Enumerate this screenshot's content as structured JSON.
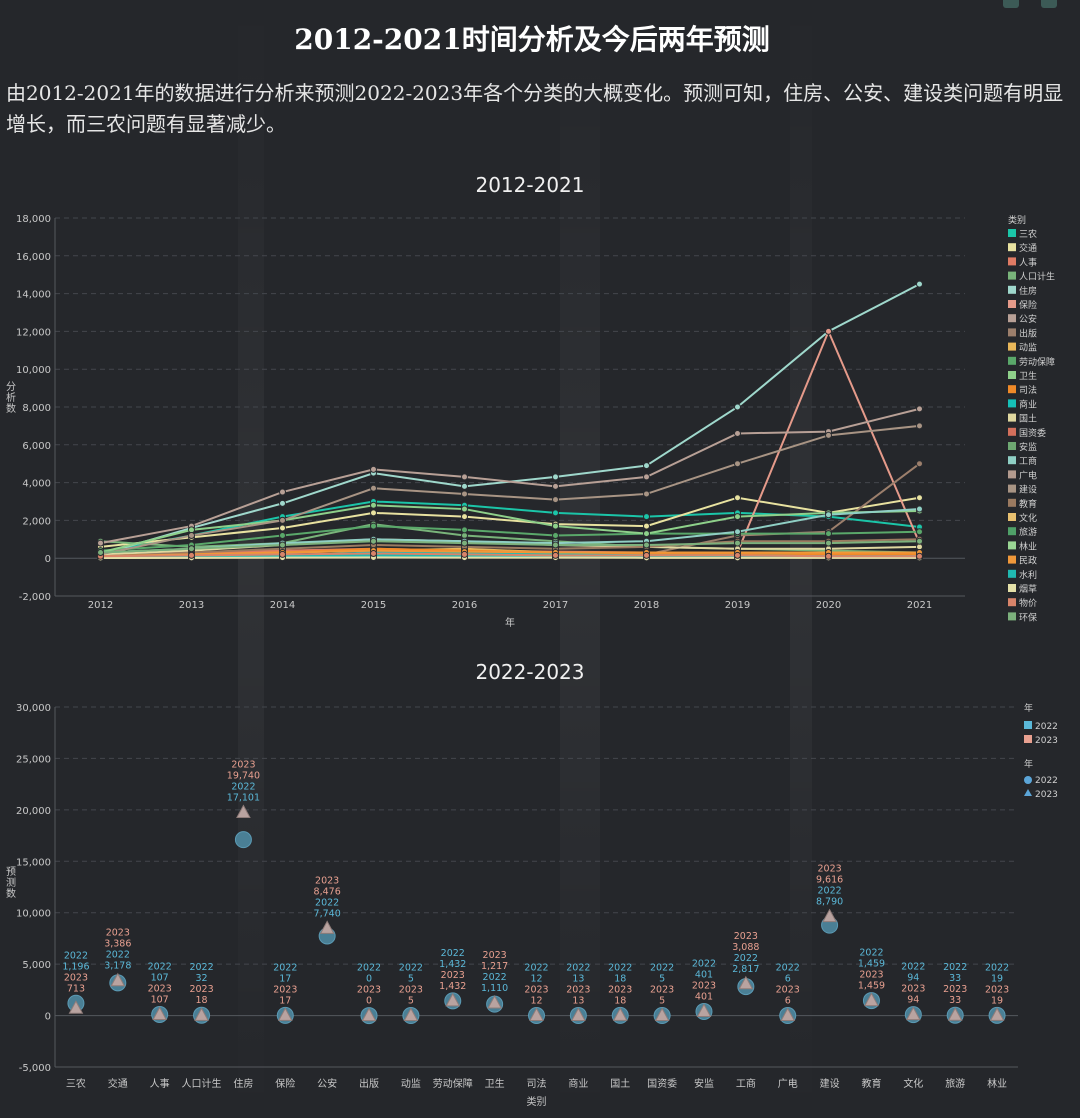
{
  "page": {
    "title": "2012-2021时间分析及今后两年预测",
    "intro": "由2012-2021年的数据进行分析来预测2022-2023年各个分类的大概变化。预测可知，住房、公安、建设类问题有明显增长，而三农问题有显著减少。"
  },
  "chart_data": [
    {
      "type": "line",
      "title": "2012-2021",
      "xlabel": "年",
      "ylabel": "分析数",
      "ylim": [
        -2000,
        18000
      ],
      "yticks": [
        -2000,
        0,
        2000,
        4000,
        6000,
        8000,
        10000,
        12000,
        14000,
        16000,
        18000
      ],
      "ytick_labels": [
        "-2,000",
        "0",
        "2,000",
        "4,000",
        "6,000",
        "8,000",
        "10,000",
        "12,000",
        "14,000",
        "16,000",
        "18,000"
      ],
      "x": [
        "2012",
        "2013",
        "2014",
        "2015",
        "2016",
        "2017",
        "2018",
        "2019",
        "2020",
        "2021"
      ],
      "grid": true,
      "legend_title": "类别",
      "legend_position": "right",
      "series": [
        {
          "name": "三农",
          "color": "#1bc5a8",
          "values": [
            300,
            1200,
            2200,
            3000,
            2800,
            2400,
            2200,
            2400,
            2200,
            1650
          ]
        },
        {
          "name": "交通",
          "color": "#e8e2a0",
          "values": [
            600,
            1100,
            1600,
            2400,
            2200,
            1800,
            1700,
            3200,
            2400,
            3200
          ]
        },
        {
          "name": "人事",
          "color": "#e07b64",
          "values": [
            200,
            300,
            400,
            500,
            400,
            350,
            300,
            300,
            250,
            200
          ]
        },
        {
          "name": "人口计生",
          "color": "#79b47a",
          "values": [
            900,
            600,
            800,
            1800,
            1200,
            900,
            600,
            500,
            400,
            300
          ]
        },
        {
          "name": "住房",
          "color": "#9fd8cc",
          "values": [
            200,
            1600,
            2900,
            4500,
            3800,
            4300,
            4900,
            8000,
            12000,
            14500
          ]
        },
        {
          "name": "保险",
          "color": "#e59a8a",
          "values": [
            100,
            200,
            300,
            400,
            350,
            300,
            300,
            300,
            12000,
            800
          ]
        },
        {
          "name": "公安",
          "color": "#b8a096",
          "values": [
            800,
            1700,
            3500,
            4700,
            4300,
            3800,
            4300,
            6600,
            6700,
            7900
          ]
        },
        {
          "name": "出版",
          "color": "#9c7f6c",
          "values": [
            50,
            100,
            150,
            200,
            150,
            100,
            200,
            1200,
            1400,
            5000
          ]
        },
        {
          "name": "动监",
          "color": "#e8b75a",
          "values": [
            100,
            200,
            300,
            400,
            500,
            300,
            200,
            200,
            200,
            200
          ]
        },
        {
          "name": "劳动保障",
          "color": "#5aa86a",
          "values": [
            400,
            700,
            1200,
            1700,
            1500,
            1200,
            1300,
            1300,
            1300,
            1400
          ]
        },
        {
          "name": "卫生",
          "color": "#8ed08a",
          "values": [
            300,
            1500,
            2000,
            2800,
            2600,
            1700,
            1300,
            2200,
            2400,
            2500
          ]
        },
        {
          "name": "司法",
          "color": "#f08a28",
          "values": [
            100,
            200,
            300,
            500,
            400,
            300,
            250,
            200,
            200,
            200
          ]
        },
        {
          "name": "商业",
          "color": "#16c0b8",
          "values": [
            50,
            100,
            150,
            300,
            250,
            200,
            150,
            150,
            100,
            100
          ]
        },
        {
          "name": "国土",
          "color": "#e0d8a0",
          "values": [
            200,
            400,
            700,
            1000,
            900,
            700,
            600,
            500,
            500,
            600
          ]
        },
        {
          "name": "国资委",
          "color": "#d4705c",
          "values": [
            20,
            40,
            60,
            80,
            70,
            60,
            50,
            50,
            40,
            40
          ]
        },
        {
          "name": "安监",
          "color": "#6ea872",
          "values": [
            30,
            50,
            80,
            100,
            90,
            80,
            70,
            60,
            60,
            60
          ]
        },
        {
          "name": "工商",
          "color": "#8fcfc4",
          "values": [
            300,
            500,
            800,
            1000,
            900,
            800,
            900,
            1400,
            2300,
            2600
          ]
        },
        {
          "name": "广电",
          "color": "#b39a8e",
          "values": [
            20,
            30,
            40,
            60,
            50,
            40,
            40,
            40,
            30,
            30
          ]
        },
        {
          "name": "建设",
          "color": "#a89484",
          "values": [
            200,
            1200,
            2000,
            3700,
            3400,
            3100,
            3400,
            5000,
            6500,
            7000
          ]
        },
        {
          "name": "教育",
          "color": "#9b7a60",
          "values": [
            100,
            300,
            500,
            700,
            600,
            500,
            600,
            900,
            900,
            1000
          ]
        },
        {
          "name": "文化",
          "color": "#e8c070",
          "values": [
            50,
            80,
            100,
            150,
            130,
            100,
            100,
            100,
            90,
            90
          ]
        },
        {
          "name": "旅游",
          "color": "#4fa068",
          "values": [
            30,
            50,
            70,
            100,
            90,
            70,
            60,
            50,
            40,
            40
          ]
        },
        {
          "name": "林业",
          "color": "#9ad694",
          "values": [
            40,
            60,
            90,
            120,
            100,
            90,
            80,
            70,
            60,
            50
          ]
        },
        {
          "name": "民政",
          "color": "#f0983a",
          "values": [
            100,
            200,
            300,
            400,
            350,
            300,
            300,
            300,
            300,
            300
          ]
        },
        {
          "name": "水利",
          "color": "#20b8b0",
          "values": [
            50,
            80,
            120,
            150,
            130,
            110,
            100,
            100,
            90,
            80
          ]
        },
        {
          "name": "烟草",
          "color": "#e4e0a8",
          "values": [
            10,
            20,
            30,
            40,
            30,
            30,
            20,
            20,
            20,
            20
          ]
        },
        {
          "name": "物价",
          "color": "#d8846a",
          "values": [
            100,
            150,
            200,
            250,
            200,
            150,
            150,
            150,
            100,
            100
          ]
        },
        {
          "name": "环保",
          "color": "#7cb07c",
          "values": [
            300,
            500,
            700,
            900,
            800,
            700,
            700,
            800,
            800,
            900
          ]
        }
      ]
    },
    {
      "type": "scatter",
      "title": "2022-2023",
      "xlabel": "类别",
      "ylabel": "预测数",
      "ylim": [
        -5000,
        30000
      ],
      "yticks": [
        -5000,
        0,
        5000,
        10000,
        15000,
        20000,
        25000,
        30000
      ],
      "ytick_labels": [
        "-5,000",
        "0",
        "5,000",
        "10,000",
        "15,000",
        "20,000",
        "25,000",
        "30,000"
      ],
      "grid": true,
      "categories": [
        "三农",
        "交通",
        "人事",
        "人口计生",
        "住房",
        "保险",
        "公安",
        "出版",
        "动监",
        "劳动保障",
        "卫生",
        "司法",
        "商业",
        "国土",
        "国资委",
        "安监",
        "工商",
        "广电",
        "建设",
        "教育",
        "文化",
        "旅游",
        "林业"
      ],
      "legend": {
        "color_title": "年",
        "shape_title": "年",
        "entries": [
          "2022",
          "2023"
        ]
      },
      "series": [
        {
          "name": "2022",
          "color": "#5bb8d8",
          "marker": "circle",
          "values": [
            1196,
            3178,
            107,
            32,
            17101,
            17,
            7740,
            0,
            5,
            1432,
            1110,
            12,
            13,
            18,
            5,
            401,
            2817,
            6,
            8790,
            1459,
            94,
            33,
            19
          ],
          "labels": [
            "1,196",
            "3,178",
            "107",
            "32",
            "17,101",
            "17",
            "7,740",
            "0",
            "5",
            "1,432",
            "1,110",
            "12",
            "13",
            "18",
            "5",
            "401",
            "2,817",
            "6",
            "8,790",
            "1,459",
            "94",
            "33",
            "19"
          ]
        },
        {
          "name": "2023",
          "color": "#e8a090",
          "marker": "triangle",
          "values": [
            713,
            3386,
            107,
            18,
            19740,
            17,
            8476,
            0,
            5,
            1432,
            1217,
            12,
            13,
            18,
            5,
            401,
            3088,
            6,
            9616,
            1459,
            94,
            33,
            19
          ],
          "labels": [
            "713",
            "3,386",
            "107",
            "18",
            "19,740",
            "17",
            "8,476",
            "0",
            "5",
            "1,432",
            "1,217",
            "12",
            "13",
            "18",
            "5",
            "401",
            "3,088",
            "6",
            "9,616",
            "1,459",
            "94",
            "33",
            "19"
          ]
        }
      ]
    }
  ]
}
